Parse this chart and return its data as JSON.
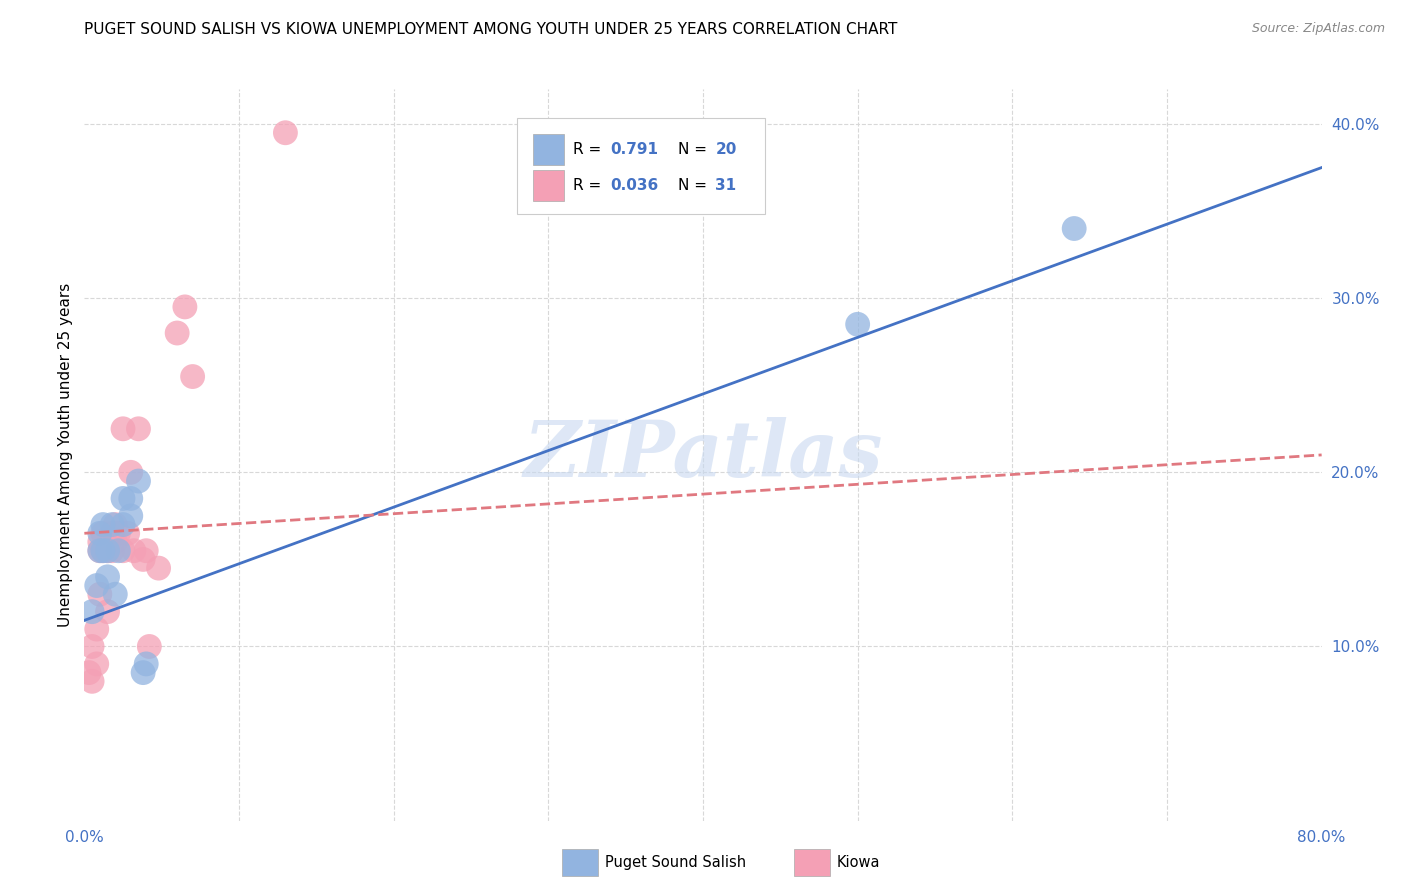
{
  "title": "PUGET SOUND SALISH VS KIOWA UNEMPLOYMENT AMONG YOUTH UNDER 25 YEARS CORRELATION CHART",
  "source": "Source: ZipAtlas.com",
  "ylabel": "Unemployment Among Youth under 25 years",
  "xlim": [
    0.0,
    0.8
  ],
  "ylim": [
    0.0,
    0.42
  ],
  "yticks_right": [
    0.1,
    0.2,
    0.3,
    0.4
  ],
  "ytick_labels_right": [
    "10.0%",
    "20.0%",
    "30.0%",
    "40.0%"
  ],
  "blue_color": "#92b4e0",
  "pink_color": "#f4a0b5",
  "blue_line_color": "#4472c4",
  "pink_line_color": "#e07880",
  "watermark": "ZIPatlas",
  "watermark_color": "#c8d8f0",
  "grid_color": "#d8d8d8",
  "puget_x": [
    0.005,
    0.008,
    0.01,
    0.01,
    0.012,
    0.012,
    0.015,
    0.015,
    0.018,
    0.02,
    0.022,
    0.025,
    0.025,
    0.03,
    0.03,
    0.035,
    0.038,
    0.04,
    0.5,
    0.64
  ],
  "puget_y": [
    0.12,
    0.135,
    0.155,
    0.165,
    0.155,
    0.17,
    0.14,
    0.155,
    0.17,
    0.13,
    0.155,
    0.17,
    0.185,
    0.175,
    0.185,
    0.195,
    0.085,
    0.09,
    0.285,
    0.34
  ],
  "kiowa_x": [
    0.003,
    0.005,
    0.005,
    0.008,
    0.008,
    0.01,
    0.01,
    0.01,
    0.012,
    0.012,
    0.015,
    0.015,
    0.018,
    0.018,
    0.02,
    0.02,
    0.022,
    0.025,
    0.025,
    0.028,
    0.03,
    0.032,
    0.035,
    0.038,
    0.04,
    0.042,
    0.048,
    0.06,
    0.065,
    0.07,
    0.13
  ],
  "kiowa_y": [
    0.085,
    0.08,
    0.1,
    0.09,
    0.11,
    0.13,
    0.155,
    0.16,
    0.155,
    0.165,
    0.12,
    0.155,
    0.155,
    0.165,
    0.16,
    0.17,
    0.165,
    0.155,
    0.225,
    0.165,
    0.2,
    0.155,
    0.225,
    0.15,
    0.155,
    0.1,
    0.145,
    0.28,
    0.295,
    0.255,
    0.395
  ],
  "blue_line_x0": 0.0,
  "blue_line_y0": 0.115,
  "blue_line_x1": 0.8,
  "blue_line_y1": 0.375,
  "pink_line_x0": 0.0,
  "pink_line_y0": 0.165,
  "pink_line_x1": 0.8,
  "pink_line_y1": 0.21
}
